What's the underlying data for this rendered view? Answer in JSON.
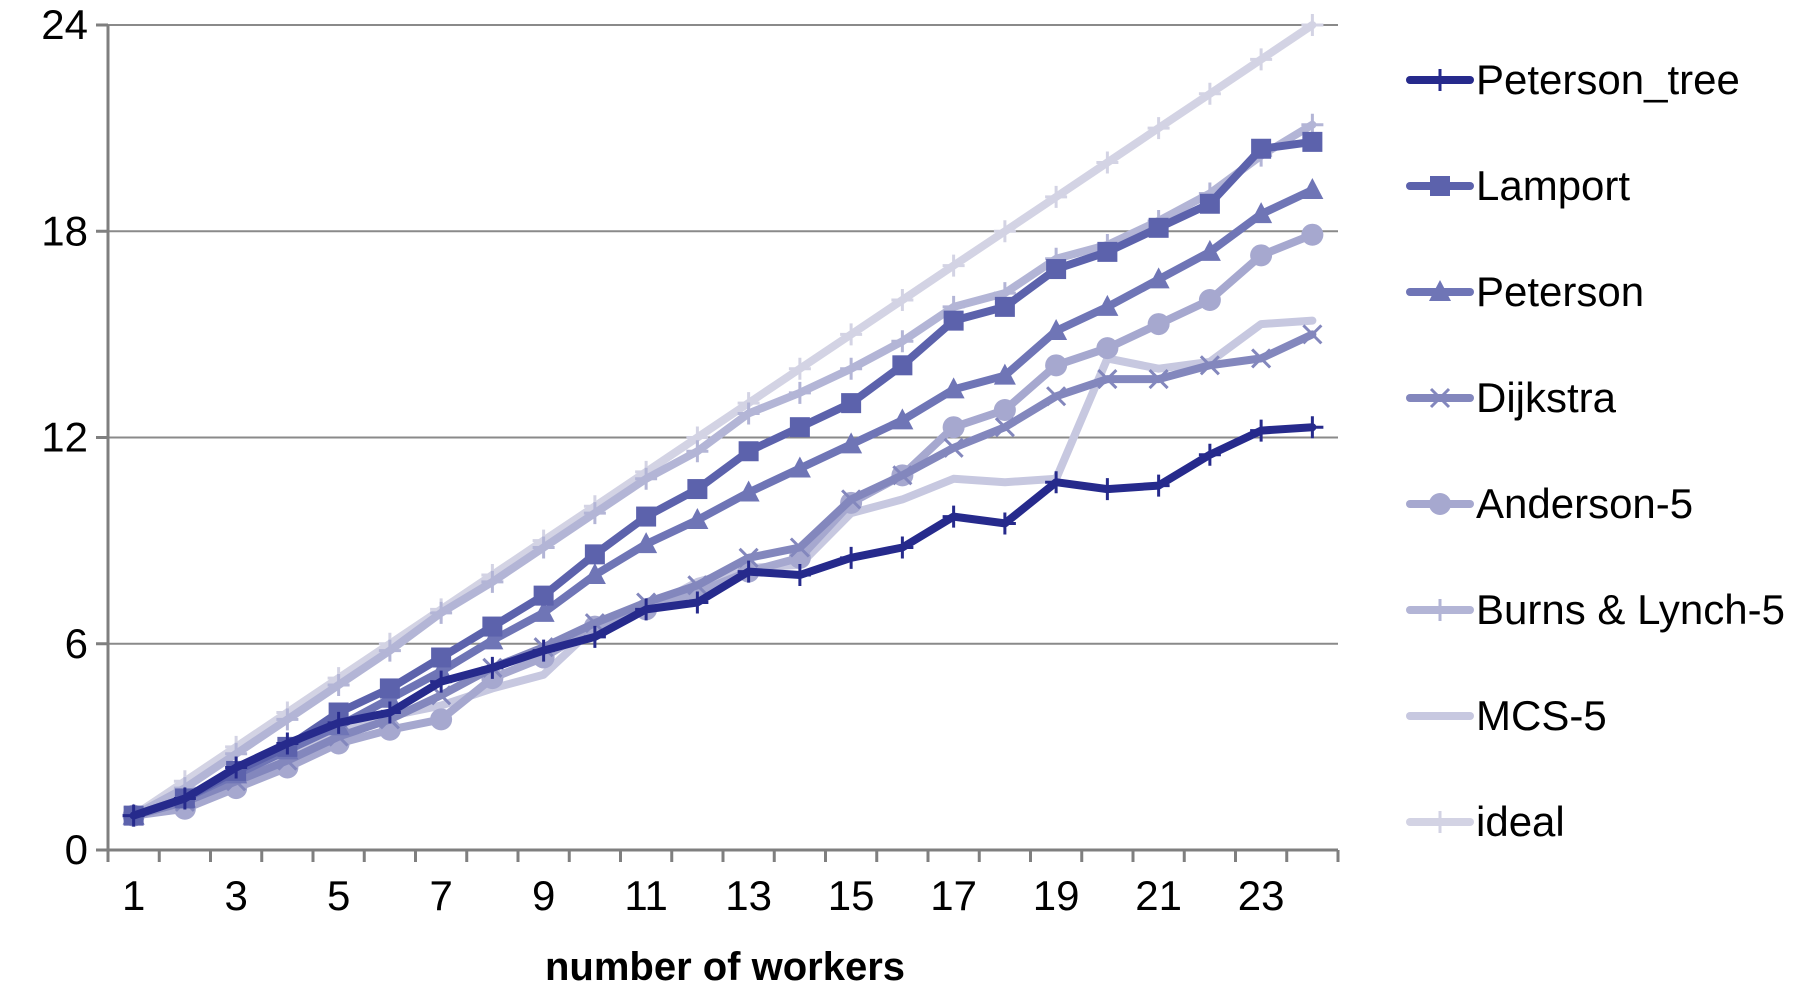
{
  "chart_data": {
    "type": "line",
    "title": "",
    "xlabel": "number of workers",
    "ylabel": "",
    "x": [
      1,
      2,
      3,
      4,
      5,
      6,
      7,
      8,
      9,
      10,
      11,
      12,
      13,
      14,
      15,
      16,
      17,
      18,
      19,
      20,
      21,
      22,
      23,
      24
    ],
    "xlim": [
      0.5,
      24.5
    ],
    "ylim": [
      0,
      24
    ],
    "x_ticks": [
      1,
      3,
      5,
      7,
      9,
      11,
      13,
      15,
      17,
      19,
      21,
      23
    ],
    "x_tick_labels": [
      "1",
      "3",
      "5",
      "7",
      "9",
      "11",
      "13",
      "15",
      "17",
      "19",
      "21",
      "23"
    ],
    "y_ticks": [
      0,
      6,
      12,
      18,
      24
    ],
    "y_tick_labels": [
      "0",
      "6",
      "12",
      "18",
      "24"
    ],
    "grid": "horizontal",
    "legend_position": "right",
    "series": [
      {
        "name": "Peterson_tree",
        "color": "#262a8c",
        "marker": "plus",
        "values": [
          1,
          1.5,
          2.4,
          3.1,
          3.7,
          4.0,
          4.9,
          5.3,
          5.8,
          6.2,
          7.0,
          7.2,
          8.1,
          8.0,
          8.5,
          8.8,
          9.7,
          9.5,
          10.7,
          10.5,
          10.6,
          11.5,
          12.2,
          12.3
        ]
      },
      {
        "name": "Lamport",
        "color": "#5c62ac",
        "marker": "square",
        "values": [
          1,
          1.5,
          2.3,
          3.0,
          4.0,
          4.7,
          5.6,
          6.5,
          7.4,
          8.6,
          9.7,
          10.5,
          11.6,
          12.3,
          13.0,
          14.1,
          15.4,
          15.8,
          16.9,
          17.4,
          18.1,
          18.8,
          20.4,
          20.6
        ]
      },
      {
        "name": "Peterson",
        "color": "#6f75b6",
        "marker": "triangle",
        "values": [
          1,
          1.5,
          2.2,
          2.9,
          3.6,
          4.4,
          5.2,
          6.1,
          6.9,
          8.0,
          8.9,
          9.6,
          10.4,
          11.1,
          11.8,
          12.5,
          13.4,
          13.8,
          15.1,
          15.8,
          16.6,
          17.4,
          18.5,
          19.2
        ]
      },
      {
        "name": "Dijkstra",
        "color": "#8387bd",
        "marker": "x",
        "values": [
          1,
          1.4,
          2.0,
          2.6,
          3.3,
          3.8,
          4.5,
          5.3,
          5.9,
          6.6,
          7.2,
          7.7,
          8.5,
          8.8,
          10.2,
          10.9,
          11.7,
          12.3,
          13.2,
          13.7,
          13.7,
          14.1,
          14.3,
          15.0
        ]
      },
      {
        "name": "Anderson-5",
        "color": "#a6a8cf",
        "marker": "circle",
        "values": [
          1,
          1.2,
          1.8,
          2.4,
          3.1,
          3.5,
          3.8,
          5.0,
          5.6,
          6.5,
          7.0,
          7.5,
          8.1,
          8.5,
          10.1,
          10.9,
          12.3,
          12.8,
          14.1,
          14.6,
          15.3,
          16.0,
          17.3,
          17.9
        ]
      },
      {
        "name": "Burns & Lynch-5",
        "color": "#b3b5d6",
        "marker": "plus",
        "values": [
          1,
          1.8,
          2.8,
          3.8,
          4.8,
          5.8,
          6.9,
          7.8,
          8.8,
          9.8,
          10.8,
          11.6,
          12.7,
          13.3,
          14.0,
          14.8,
          15.8,
          16.2,
          17.2,
          17.6,
          18.3,
          19.1,
          20.2,
          21.1
        ]
      },
      {
        "name": "MCS-5",
        "color": "#c7c8e0",
        "marker": "none",
        "values": [
          1,
          1.5,
          2.2,
          2.8,
          3.4,
          3.9,
          4.2,
          4.7,
          5.1,
          6.5,
          7.0,
          7.8,
          8.2,
          8.3,
          9.8,
          10.2,
          10.8,
          10.7,
          10.8,
          14.3,
          14.0,
          14.2,
          15.3,
          15.4
        ]
      },
      {
        "name": "ideal",
        "color": "#d3d3e4",
        "marker": "plus",
        "values": [
          1,
          2,
          3,
          4,
          5,
          6,
          7,
          8,
          9,
          10,
          11,
          12,
          13,
          14,
          15,
          16,
          17,
          18,
          19,
          20,
          21,
          22,
          23,
          24
        ]
      }
    ]
  }
}
